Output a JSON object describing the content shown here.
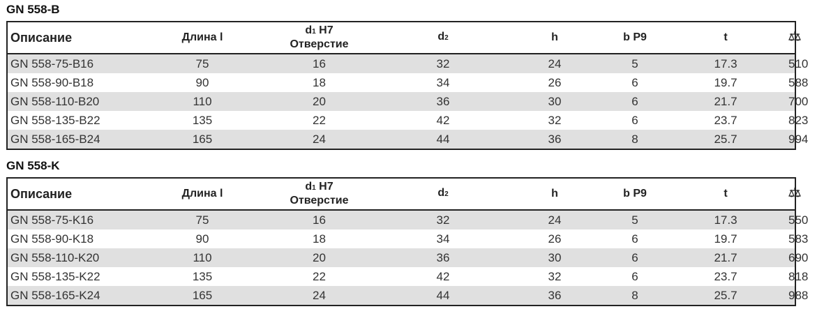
{
  "headers": {
    "desc": "Описание",
    "length": "Длина l",
    "d1_sym": "d",
    "d1_sub": "1",
    "d1_tol": "H7",
    "d1_label": "Отверстие",
    "d2_sym": "d",
    "d2_sub": "2",
    "h": "h",
    "b": "b P9",
    "t": "t",
    "weight_icon": "scale-weight-icon"
  },
  "tables": [
    {
      "title": "GN 558-B",
      "rows": [
        [
          "GN 558-75-B16",
          "75",
          "16",
          "32",
          "24",
          "5",
          "17.3",
          "510"
        ],
        [
          "GN 558-90-B18",
          "90",
          "18",
          "34",
          "26",
          "6",
          "19.7",
          "588"
        ],
        [
          "GN 558-110-B20",
          "110",
          "20",
          "36",
          "30",
          "6",
          "21.7",
          "700"
        ],
        [
          "GN 558-135-B22",
          "135",
          "22",
          "42",
          "32",
          "6",
          "23.7",
          "823"
        ],
        [
          "GN 558-165-B24",
          "165",
          "24",
          "44",
          "36",
          "8",
          "25.7",
          "994"
        ]
      ]
    },
    {
      "title": "GN 558-K",
      "rows": [
        [
          "GN 558-75-K16",
          "75",
          "16",
          "32",
          "24",
          "5",
          "17.3",
          "550"
        ],
        [
          "GN 558-90-K18",
          "90",
          "18",
          "34",
          "26",
          "6",
          "19.7",
          "583"
        ],
        [
          "GN 558-110-K20",
          "110",
          "20",
          "36",
          "30",
          "6",
          "21.7",
          "690"
        ],
        [
          "GN 558-135-K22",
          "135",
          "22",
          "42",
          "32",
          "6",
          "23.7",
          "818"
        ],
        [
          "GN 558-165-K24",
          "165",
          "24",
          "44",
          "36",
          "8",
          "25.7",
          "988"
        ]
      ]
    }
  ]
}
